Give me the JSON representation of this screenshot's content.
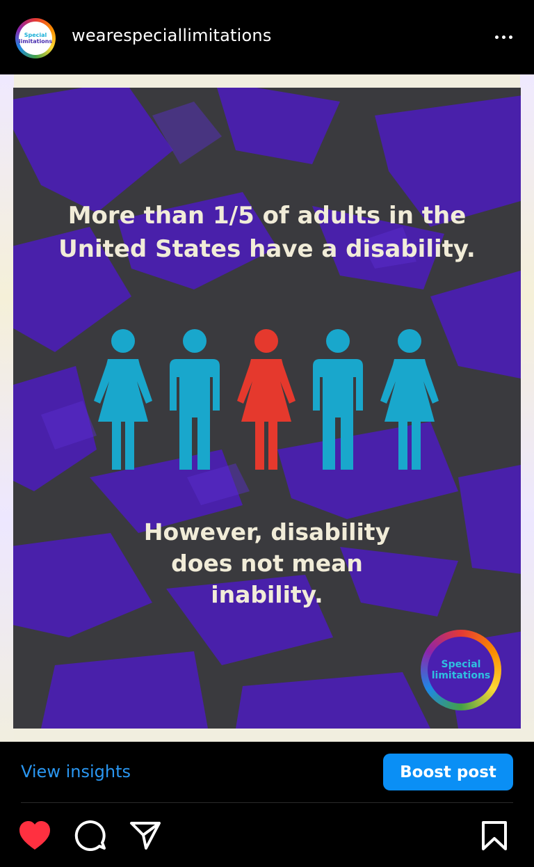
{
  "header": {
    "avatar_line1": "Special",
    "avatar_line2": "limitations",
    "username": "wearespeciallimitations"
  },
  "post": {
    "headline_line1": "More than 1/5 of adults in the",
    "headline_line2": "United States have a disability.",
    "subline_line1": "However, disability",
    "subline_line2": "does not mean",
    "subline_line3": "inability.",
    "badge_line1": "Special",
    "badge_line2": "limitations",
    "figures": [
      {
        "type": "woman",
        "color": "#19a7cc"
      },
      {
        "type": "man",
        "color": "#19a7cc"
      },
      {
        "type": "woman",
        "color": "#e5392d"
      },
      {
        "type": "man",
        "color": "#19a7cc"
      },
      {
        "type": "woman",
        "color": "#19a7cc"
      }
    ],
    "colors": {
      "background": "#3a3a3e",
      "purple": "#4a1fb0",
      "text": "#f1ecd8"
    }
  },
  "actions": {
    "view_insights": "View insights",
    "boost_post": "Boost post",
    "icons": [
      "heart-icon",
      "comment-icon",
      "share-icon",
      "bookmark-icon"
    ],
    "liked_color": "#ff3040"
  }
}
